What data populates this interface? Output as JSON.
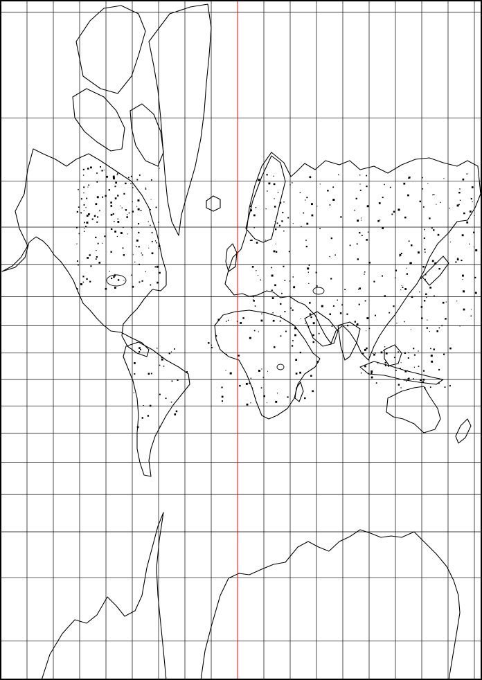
{
  "map": {
    "projection": "Mercator",
    "background": "#ffffff",
    "graticule_color": "#000000",
    "central_meridian_color": "#ff0000",
    "coastline_color": "#000000",
    "meridian_spacing_deg": 10,
    "parallel_spacing_deg": 10,
    "labels": []
  }
}
